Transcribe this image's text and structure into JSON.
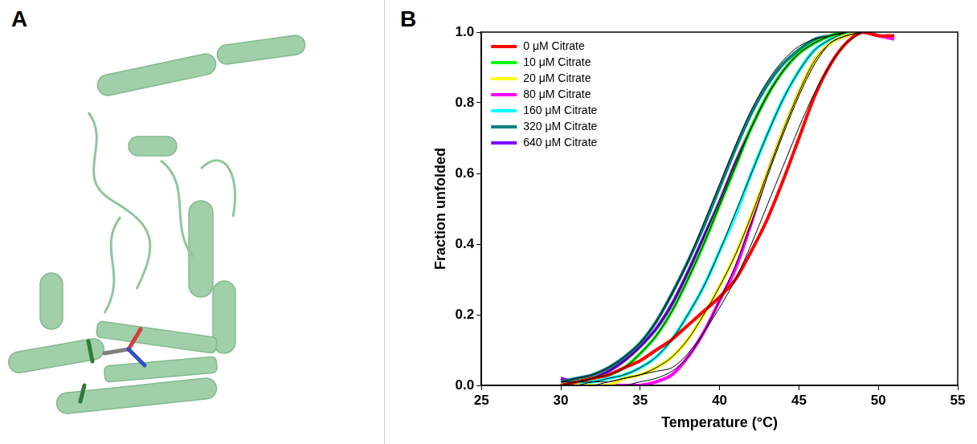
{
  "panel_labels": [
    "A",
    "B"
  ],
  "chart_data": {
    "type": "line",
    "x_label": "Temperature (°C)",
    "y_label": "Fraction unfolded",
    "x": [
      30,
      31,
      32,
      33,
      34,
      35,
      36,
      37,
      38,
      39,
      40,
      41,
      42,
      43,
      44,
      45,
      46,
      47,
      48,
      49,
      50,
      51
    ],
    "series": [
      {
        "name": "0 μM Citrate",
        "color": "#ff0000",
        "values": [
          0.0,
          0.01,
          0.02,
          0.03,
          0.05,
          0.07,
          0.1,
          0.13,
          0.17,
          0.21,
          0.25,
          0.3,
          0.38,
          0.47,
          0.58,
          0.7,
          0.82,
          0.91,
          0.97,
          1.0,
          0.99,
          0.99
        ]
      },
      {
        "name": "10 μM Citrate",
        "color": "#00ff00",
        "values": [
          0.0,
          0.01,
          0.02,
          0.03,
          0.05,
          0.09,
          0.14,
          0.21,
          0.3,
          0.4,
          0.51,
          0.62,
          0.73,
          0.82,
          0.89,
          0.94,
          0.97,
          0.99,
          1.0,
          null,
          null,
          null
        ]
      },
      {
        "name": "20 μM Citrate",
        "color": "#ffff00",
        "values": [
          0.0,
          0.0,
          0.0,
          0.0,
          0.02,
          0.03,
          0.05,
          0.08,
          0.13,
          0.2,
          0.28,
          0.37,
          0.48,
          0.6,
          0.72,
          0.83,
          0.92,
          0.97,
          0.99,
          1.0,
          null,
          null
        ]
      },
      {
        "name": "80 μM Citrate",
        "color": "#ff00ff",
        "values": [
          0.0,
          0.0,
          0.0,
          0.0,
          0.0,
          0.0,
          0.01,
          0.03,
          0.08,
          0.15,
          0.24,
          0.33,
          0.46,
          0.6,
          0.72,
          0.83,
          0.92,
          0.97,
          0.99,
          1.0,
          0.99,
          0.98
        ]
      },
      {
        "name": "160 μM Citrate",
        "color": "#00ffff",
        "values": [
          null,
          0.01,
          0.01,
          0.02,
          0.03,
          0.05,
          0.08,
          0.13,
          0.2,
          0.28,
          0.38,
          0.48,
          0.6,
          0.71,
          0.81,
          0.89,
          0.95,
          0.98,
          1.0,
          1.0,
          0.99,
          null
        ]
      },
      {
        "name": "320 μM Citrate",
        "color": "#008080",
        "values": [
          0.01,
          0.02,
          0.03,
          0.05,
          0.08,
          0.12,
          0.18,
          0.26,
          0.35,
          0.45,
          0.56,
          0.67,
          0.77,
          0.85,
          0.91,
          0.95,
          0.98,
          0.99,
          1.0,
          null,
          null,
          null
        ]
      },
      {
        "name": "640 μM Citrate",
        "color": "#8000ff",
        "values": [
          0.02,
          0.01,
          0.02,
          0.04,
          0.07,
          0.11,
          0.16,
          0.23,
          0.32,
          0.42,
          0.52,
          0.63,
          0.73,
          0.82,
          0.89,
          0.94,
          0.97,
          0.99,
          1.0,
          1.0,
          null,
          null
        ]
      }
    ],
    "fits": [
      {
        "color": "#000000",
        "values": [
          0.0,
          0.0,
          0.01,
          0.01,
          0.02,
          0.03,
          0.04,
          0.05,
          0.09,
          0.15,
          0.22,
          0.3,
          0.4,
          0.51,
          0.62,
          0.73,
          0.83,
          0.91,
          0.97,
          1.0,
          null,
          null
        ]
      },
      {
        "color": "#000000",
        "values": [
          0.0,
          0.01,
          0.02,
          0.03,
          0.05,
          0.09,
          0.14,
          0.21,
          0.3,
          0.4,
          0.51,
          0.62,
          0.73,
          0.82,
          0.89,
          0.94,
          0.97,
          0.99,
          1.0,
          null,
          null,
          null
        ]
      },
      {
        "color": "#000000",
        "values": [
          0.0,
          0.0,
          0.0,
          0.01,
          0.02,
          0.03,
          0.05,
          0.08,
          0.13,
          0.2,
          0.28,
          0.37,
          0.48,
          0.6,
          0.72,
          0.83,
          0.92,
          0.97,
          0.99,
          1.0,
          null,
          null
        ]
      },
      {
        "color": "#000000",
        "values": [
          0.0,
          0.0,
          0.0,
          0.0,
          0.0,
          0.01,
          0.02,
          0.04,
          0.08,
          0.15,
          0.24,
          0.34,
          0.46,
          0.59,
          0.71,
          0.82,
          0.91,
          0.97,
          0.99,
          1.0,
          null,
          null
        ]
      },
      {
        "color": "#000000",
        "values": [
          null,
          0.01,
          0.01,
          0.02,
          0.03,
          0.05,
          0.08,
          0.13,
          0.2,
          0.28,
          0.38,
          0.49,
          0.6,
          0.71,
          0.81,
          0.89,
          0.95,
          0.98,
          1.0,
          null,
          null,
          null
        ]
      },
      {
        "color": "#000000",
        "values": [
          0.01,
          0.02,
          0.03,
          0.05,
          0.08,
          0.12,
          0.18,
          0.26,
          0.35,
          0.46,
          0.57,
          0.68,
          0.78,
          0.86,
          0.92,
          0.96,
          0.98,
          0.99,
          1.0,
          null,
          null,
          null
        ]
      },
      {
        "color": "#000000",
        "values": [
          0.01,
          0.01,
          0.02,
          0.04,
          0.07,
          0.11,
          0.16,
          0.23,
          0.32,
          0.42,
          0.52,
          0.63,
          0.73,
          0.82,
          0.89,
          0.94,
          0.97,
          0.99,
          1.0,
          null,
          null,
          null
        ]
      }
    ],
    "xlim": [
      25,
      55
    ],
    "xticks": [
      25,
      30,
      35,
      40,
      45,
      50,
      55
    ],
    "ylim": [
      0,
      1
    ],
    "yticks": [
      {
        "value": 0,
        "label": "0.0"
      },
      {
        "value": 0.2,
        "label": "0.2"
      },
      {
        "value": 0.4,
        "label": "0.4"
      },
      {
        "value": 0.6,
        "label": "0.6"
      },
      {
        "value": 0.8,
        "label": "0.8"
      },
      {
        "value": 1,
        "label": "1.0"
      }
    ],
    "grid": false,
    "legend": "top-left"
  }
}
